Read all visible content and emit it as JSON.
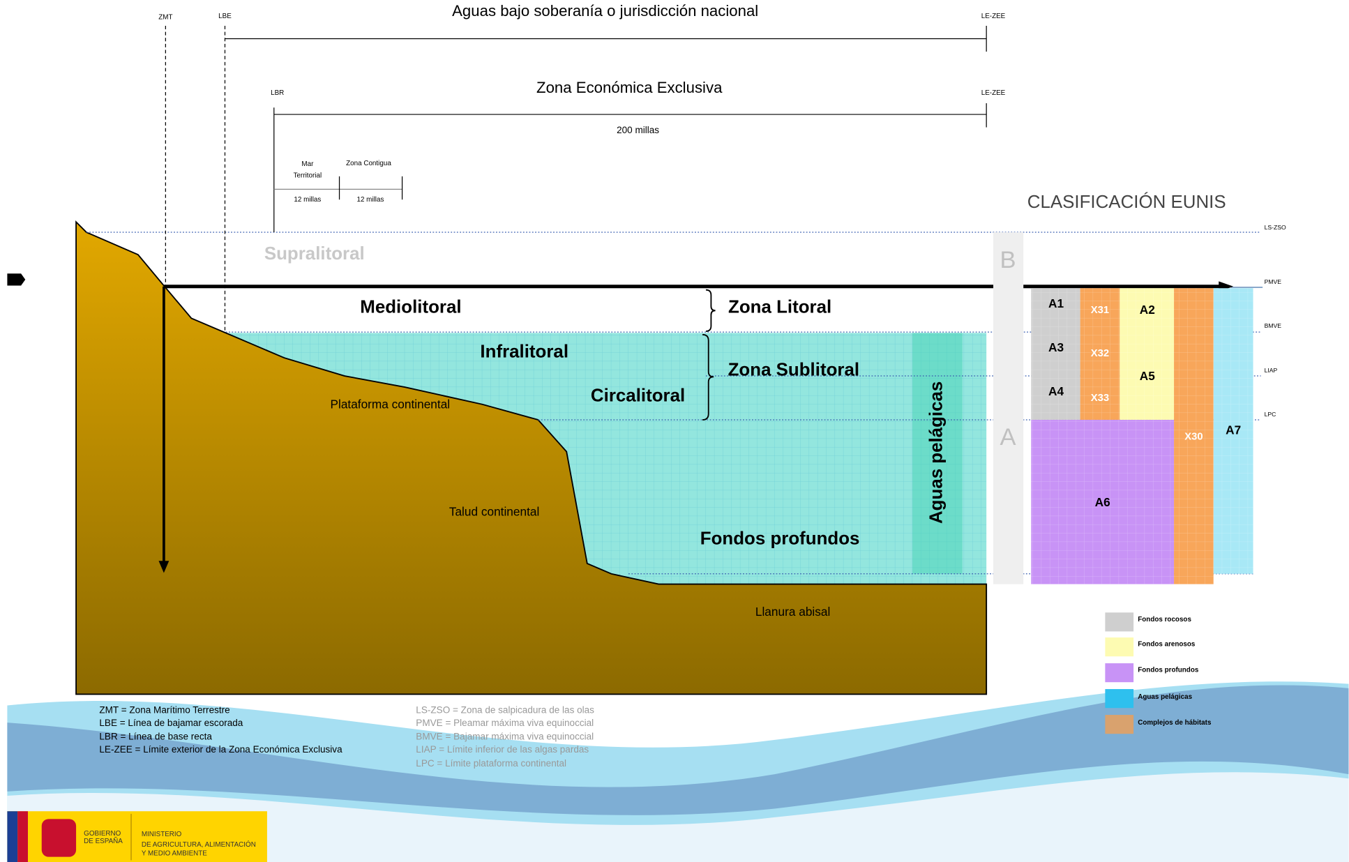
{
  "top_ruler": {
    "title": "Aguas bajo soberanía o jurisdicción nacional",
    "left_label": "LBE",
    "right_label": "LE-ZEE",
    "zmt_label": "ZMT"
  },
  "eez_ruler": {
    "title": "Zona Económica Exclusiva",
    "left_label": "LBR",
    "right_label": "LE-ZEE",
    "distance": "200 millas"
  },
  "territorial": {
    "name_line1": "Mar",
    "name_line2": "Territorial",
    "distance": "12 millas"
  },
  "contiguous": {
    "name": "Zona Contigua",
    "distance": "12 millas"
  },
  "eunis_title": "CLASIFICACIÓN EUNIS",
  "levels": [
    "LS-ZSO",
    "PMVE",
    "BMVE",
    "LIAP",
    "LPC"
  ],
  "zones": {
    "supralitoral": "Supralitoral",
    "mediolitoral": "Mediolitoral",
    "zona_litoral": "Zona Litoral",
    "infralitoral": "Infralitoral",
    "zona_sublitoral": "Zona Sublitoral",
    "circalitoral": "Circalitoral",
    "plataforma": "Plataforma continental",
    "aguas_pelagicas": "Aguas pelágicas",
    "talud": "Talud continental",
    "fondos_profundos": "Fondos profundos",
    "llanura": "Llanura abisal"
  },
  "eunis": {
    "b": "B",
    "a": "A",
    "codes": [
      "A1",
      "X31",
      "A2",
      "A3",
      "X32",
      "A5",
      "A4",
      "X33",
      "A6",
      "X30",
      "A7"
    ]
  },
  "legend": [
    "Fondos rocosos",
    "Fondos arenosos",
    "Fondos profundos",
    "Aguas pelágicas",
    "Complejos de hábitats"
  ],
  "notes_left": [
    "ZMT = Zona Marítimo Terrestre",
    "LBE = Línea de bajamar escorada",
    "LBR = Línea de base recta",
    "LE-ZEE = Límite exterior de la Zona Económica Exclusiva"
  ],
  "notes_right": [
    "LS-ZSO = Zona de salpicadura de las olas",
    "PMVE = Pleamar máxima viva equinoccial",
    "BMVE = Bajamar máxima viva equinoccial",
    "LIAP = Límite inferior de las algas pardas",
    "LPC = Límite plataforma continental"
  ],
  "logo": {
    "gov_line1": "GOBIERNO",
    "gov_line2": "DE ESPAÑA",
    "min_line1": "MINISTERIO",
    "min_line2": "DE AGRICULTURA, ALIMENTACIÓN",
    "min_line3": "Y MEDIO AMBIENTE"
  }
}
